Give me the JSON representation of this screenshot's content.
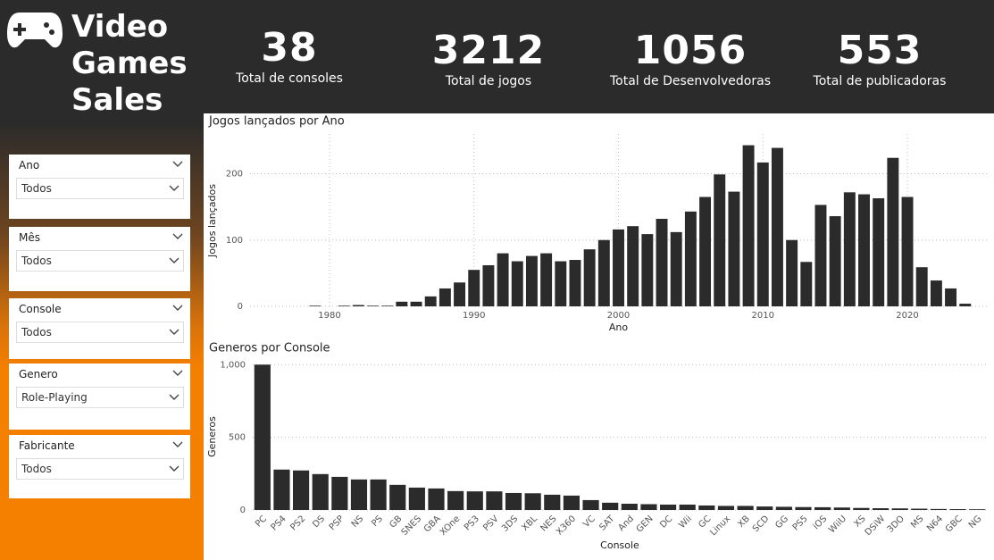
{
  "header": {
    "title": "Video Games Sales"
  },
  "kpis": [
    {
      "value": 38,
      "label": "Total de consoles"
    },
    {
      "value": 3212,
      "label": "Total de jogos"
    },
    {
      "value": 1056,
      "label": "Total de Desenvolvedoras"
    },
    {
      "value": 553,
      "label": "Total de publicadoras"
    }
  ],
  "filters": [
    {
      "label": "Ano",
      "value": "Todos"
    },
    {
      "label": "Mês",
      "value": "Todos"
    },
    {
      "label": "Console",
      "value": "Todos"
    },
    {
      "label": "Genero",
      "value": "Role-Playing"
    },
    {
      "label": "Fabricante",
      "value": "Todos"
    }
  ],
  "chart_data": [
    {
      "type": "bar",
      "title": "Jogos lançados por Ano",
      "x_label": "Ano",
      "y_label": "Jogos lançados",
      "x": [
        1979,
        1981,
        1982,
        1983,
        1984,
        1985,
        1986,
        1987,
        1988,
        1989,
        1990,
        1991,
        1992,
        1993,
        1994,
        1995,
        1996,
        1997,
        1998,
        1999,
        2000,
        2001,
        2002,
        2003,
        2004,
        2005,
        2006,
        2007,
        2008,
        2009,
        2010,
        2011,
        2012,
        2013,
        2014,
        2015,
        2016,
        2017,
        2018,
        2019,
        2020,
        2021,
        2022,
        2023,
        2024
      ],
      "values": [
        1,
        1,
        2,
        1,
        1,
        7,
        7,
        15,
        27,
        36,
        55,
        62,
        80,
        68,
        76,
        80,
        68,
        70,
        86,
        100,
        116,
        121,
        109,
        132,
        112,
        143,
        165,
        199,
        173,
        243,
        217,
        239,
        100,
        67,
        153,
        136,
        172,
        169,
        163,
        224,
        165,
        59,
        39,
        27,
        4
      ],
      "xlim": [
        1974.5,
        2025.5
      ],
      "xticks": [
        1980,
        1990,
        2000,
        2010,
        2020
      ],
      "ylim": [
        0,
        260
      ],
      "yticks": [
        0,
        100,
        200
      ],
      "color": "#2b2b2b",
      "grid": true
    },
    {
      "type": "bar",
      "title": "Generos por Console",
      "x_label": "Console",
      "y_label": "Generos",
      "categories": [
        "PC",
        "PS4",
        "PS2",
        "DS",
        "PSP",
        "NS",
        "PS",
        "GB",
        "SNES",
        "GBA",
        "XOne",
        "PS3",
        "PSV",
        "3DS",
        "XBL",
        "NES",
        "X360",
        "VC",
        "SAT",
        "And",
        "GEN",
        "DC",
        "Wii",
        "GC",
        "Linux",
        "XB",
        "SCD",
        "GG",
        "PS5",
        "iOS",
        "WiiU",
        "XS",
        "DSiW",
        "3DO",
        "MS",
        "N64",
        "GBC",
        "NG"
      ],
      "values": [
        1000,
        278,
        272,
        247,
        228,
        210,
        210,
        173,
        154,
        148,
        130,
        128,
        128,
        117,
        115,
        105,
        99,
        68,
        50,
        43,
        40,
        37,
        37,
        31,
        28,
        28,
        24,
        22,
        20,
        19,
        17,
        14,
        12,
        11,
        9,
        7,
        6,
        5
      ],
      "ylim": [
        0,
        1020
      ],
      "yticks": [
        0,
        500,
        {
          "value": 1000,
          "label": "1,000"
        }
      ],
      "color": "#2b2b2b",
      "grid": true
    }
  ]
}
